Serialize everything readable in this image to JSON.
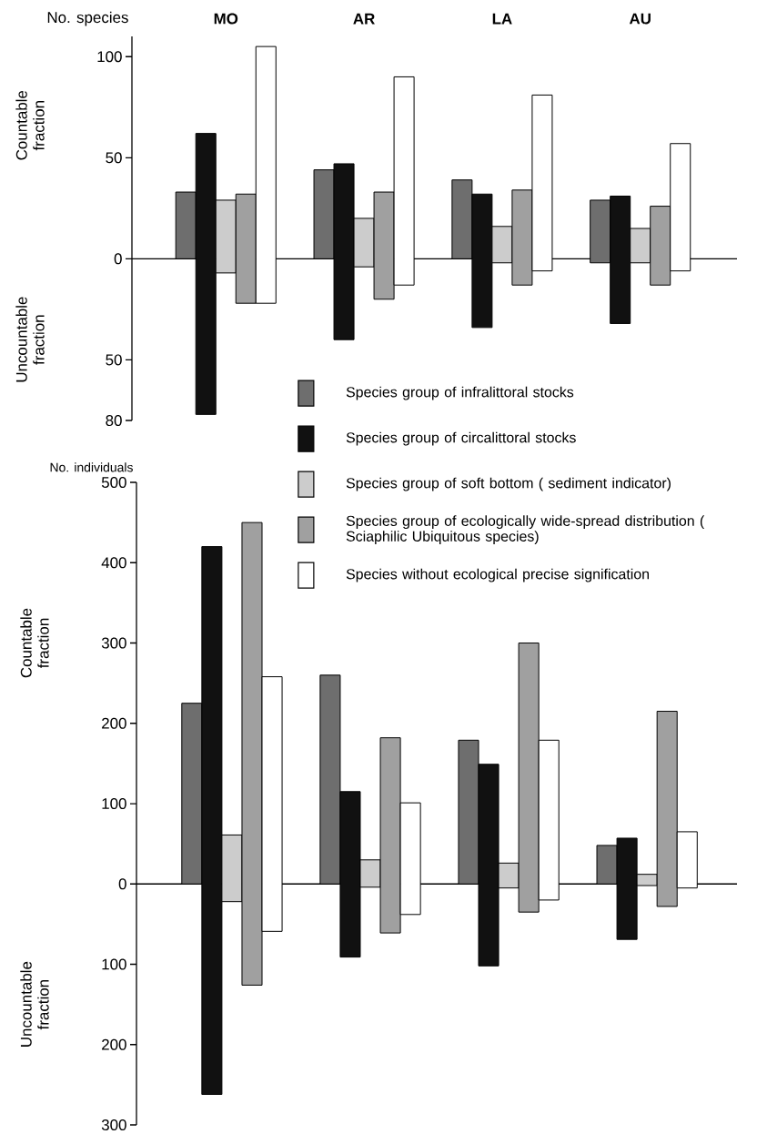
{
  "chart_data": [
    {
      "type": "bar",
      "categories": [
        "MO",
        "AR",
        "LA",
        "AU"
      ],
      "ylabel": "No. species",
      "annotations": [
        "Countable fraction",
        "Uncountable fraction"
      ],
      "ylim": [
        -80,
        110
      ],
      "yticks": [
        {
          "value": -80,
          "label": "80"
        },
        {
          "value": -50,
          "label": "50"
        },
        0,
        50,
        100
      ],
      "legend": "bottom right",
      "series": [
        {
          "name": "Species group of infralittoral stocks",
          "color": "#6e6e6e",
          "base": [
            0,
            0,
            0,
            -2
          ],
          "values": [
            33,
            44,
            39,
            31
          ]
        },
        {
          "name": "Species group of circalittoral stocks",
          "color": "#111111",
          "base": [
            -77,
            -40,
            -34,
            -32
          ],
          "values": [
            139,
            87,
            66,
            63
          ]
        },
        {
          "name": "Species group of soft bottom ( sediment indicator)",
          "color": "#cccccc",
          "base": [
            -7,
            -4,
            -2,
            -2
          ],
          "values": [
            36,
            24,
            18,
            17
          ]
        },
        {
          "name": "Species group of ecologically wide-spread distribution ( Sciaphilic Ubiquitous species)",
          "color": "#a0a0a0",
          "base": [
            -22,
            -20,
            -13,
            -13
          ],
          "values": [
            54,
            53,
            47,
            39
          ]
        },
        {
          "name": "Species without ecological precise signification",
          "color": "#ffffff",
          "base": [
            -22,
            -13,
            -6,
            -6
          ],
          "values": [
            127,
            103,
            87,
            63
          ]
        }
      ]
    },
    {
      "type": "bar",
      "categories": [
        null,
        null,
        null,
        null
      ],
      "tick_labels": "y",
      "ylabel": "No. individuals",
      "annotations": [
        "Countable fraction",
        "Uncountable fraction"
      ],
      "ylim": [
        -300,
        500
      ],
      "yticks": [
        {
          "value": -300,
          "label": "300"
        },
        {
          "value": -200,
          "label": "200"
        },
        {
          "value": -100,
          "label": "100"
        },
        0,
        100,
        200,
        300,
        400,
        500
      ],
      "series": [
        {
          "color": "#6e6e6e",
          "base": [
            0,
            0,
            0,
            0
          ],
          "values": [
            225,
            260,
            179,
            48
          ]
        },
        {
          "color": "#111111",
          "base": [
            -262,
            -91,
            -102,
            -69
          ],
          "values": [
            682,
            206,
            251,
            126
          ]
        },
        {
          "color": "#cccccc",
          "base": [
            -22,
            -4,
            -5,
            -2
          ],
          "values": [
            83,
            34,
            31,
            14
          ]
        },
        {
          "color": "#a0a0a0",
          "base": [
            -126,
            -61,
            -35,
            -28
          ],
          "values": [
            576,
            243,
            335,
            243
          ]
        },
        {
          "color": "#ffffff",
          "base": [
            -59,
            -38,
            -20,
            -5
          ],
          "values": [
            317,
            139,
            199,
            70
          ]
        }
      ]
    }
  ]
}
